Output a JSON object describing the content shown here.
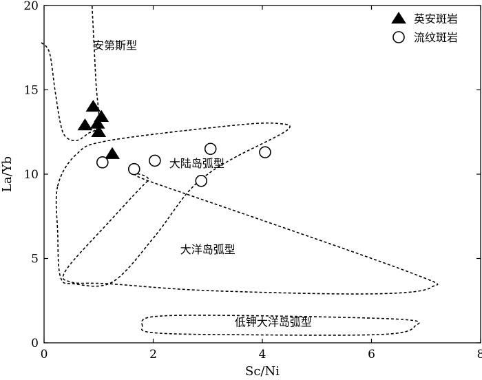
{
  "chart_data": {
    "type": "scatter",
    "xlabel": "Sc/Ni",
    "ylabel": "La/Yb",
    "xlim": [
      0,
      8
    ],
    "ylim": [
      0,
      20
    ],
    "x_ticks": [
      "0",
      "2",
      "4",
      "6",
      "8"
    ],
    "y_ticks": [
      "0",
      "5",
      "10",
      "15",
      "20"
    ],
    "grid": false,
    "legend_position": "top-right",
    "series": [
      {
        "name": "英安斑岩",
        "marker": "filled-triangle",
        "color": "#000000",
        "points": [
          {
            "x": 0.75,
            "y": 12.9
          },
          {
            "x": 0.9,
            "y": 14.0
          },
          {
            "x": 0.98,
            "y": 13.0
          },
          {
            "x": 1.05,
            "y": 13.4
          },
          {
            "x": 1.0,
            "y": 12.5
          },
          {
            "x": 1.25,
            "y": 11.2
          }
        ]
      },
      {
        "name": "流纹斑岩",
        "marker": "open-circle",
        "color": "#000000",
        "points": [
          {
            "x": 1.07,
            "y": 10.7
          },
          {
            "x": 1.65,
            "y": 10.3
          },
          {
            "x": 2.03,
            "y": 10.8
          },
          {
            "x": 3.05,
            "y": 11.5
          },
          {
            "x": 2.88,
            "y": 9.6
          },
          {
            "x": 4.05,
            "y": 11.3
          }
        ]
      }
    ],
    "regions": [
      {
        "name": "安第斯型",
        "label_at": {
          "x": 1.3,
          "y": 17.4
        },
        "boundary": [
          [
            -0.05,
            17.8
          ],
          [
            0.1,
            17.2
          ],
          [
            0.2,
            15.0
          ],
          [
            0.3,
            13.0
          ],
          [
            0.4,
            12.2
          ],
          [
            0.6,
            12.0
          ],
          [
            0.8,
            12.4
          ],
          [
            1.0,
            13.0
          ],
          [
            0.95,
            15.5
          ],
          [
            0.88,
            20.0
          ]
        ]
      },
      {
        "name": "大陆岛弧型",
        "label_at": {
          "x": 2.8,
          "y": 10.4
        },
        "boundary": [
          [
            0.25,
            9.3
          ],
          [
            0.6,
            11.2
          ],
          [
            1.2,
            12.0
          ],
          [
            3.5,
            12.9
          ],
          [
            4.3,
            13.0
          ],
          [
            4.45,
            12.6
          ],
          [
            3.5,
            11.0
          ],
          [
            3.0,
            10.0
          ],
          [
            2.6,
            8.8
          ],
          [
            2.0,
            6.2
          ],
          [
            1.25,
            3.6
          ],
          [
            0.55,
            3.5
          ],
          [
            0.3,
            3.9
          ],
          [
            0.25,
            6.5
          ],
          [
            0.25,
            9.3
          ]
        ],
        "open": false
      },
      {
        "name": "大洋岛弧型",
        "label_at": {
          "x": 3.0,
          "y": 5.3
        },
        "boundary": [
          [
            1.9,
            9.6
          ],
          [
            1.2,
            7.2
          ],
          [
            0.4,
            4.3
          ],
          [
            0.5,
            3.6
          ],
          [
            1.2,
            3.5
          ],
          [
            3.0,
            3.1
          ],
          [
            6.0,
            2.9
          ],
          [
            7.1,
            3.3
          ],
          [
            6.6,
            4.3
          ],
          [
            2.0,
            9.5
          ],
          [
            1.9,
            9.6
          ]
        ],
        "open": false
      },
      {
        "name": "低钾大洋岛弧型",
        "label_at": {
          "x": 4.2,
          "y": 1.0
        },
        "boundary": [
          [
            1.8,
            1.0
          ],
          [
            2.0,
            1.55
          ],
          [
            3.5,
            1.62
          ],
          [
            6.5,
            1.4
          ],
          [
            6.8,
            1.0
          ],
          [
            6.2,
            0.5
          ],
          [
            3.5,
            0.48
          ],
          [
            2.0,
            0.6
          ],
          [
            1.8,
            1.0
          ]
        ],
        "open": false
      }
    ]
  }
}
